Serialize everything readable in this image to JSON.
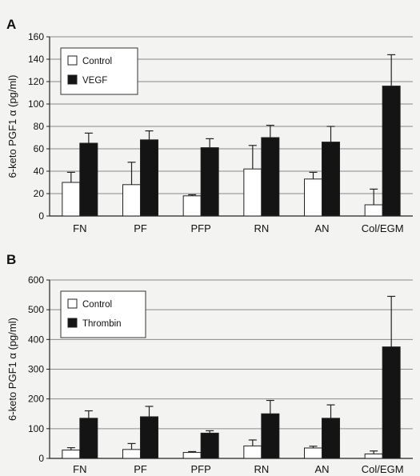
{
  "chart_data": [
    {
      "type": "bar",
      "panel_label": "A",
      "ylabel": "6-keto PGF1 α (pg/ml)",
      "xlabel": "",
      "ylim": [
        0,
        160
      ],
      "yticks": [
        0,
        20,
        40,
        60,
        80,
        100,
        120,
        140,
        160
      ],
      "grid": true,
      "legend_position": "top-left",
      "categories": [
        "FN",
        "PF",
        "PFP",
        "RN",
        "AN",
        "Col/EGM"
      ],
      "series": [
        {
          "name": "Control",
          "color": "#ffffff",
          "values": [
            30,
            28,
            18,
            42,
            33,
            10
          ],
          "errors": [
            9,
            20,
            1,
            21,
            6,
            14
          ]
        },
        {
          "name": "VEGF",
          "color": "#141414",
          "values": [
            65,
            68,
            61,
            70,
            66,
            116
          ],
          "errors": [
            9,
            8,
            8,
            11,
            14,
            28
          ]
        }
      ]
    },
    {
      "type": "bar",
      "panel_label": "B",
      "ylabel": "6-keto PGF1 α (pg/ml)",
      "xlabel": "",
      "ylim": [
        0,
        600
      ],
      "yticks": [
        0,
        100,
        200,
        300,
        400,
        500,
        600
      ],
      "grid": true,
      "legend_position": "top-left",
      "categories": [
        "FN",
        "PF",
        "PFP",
        "RN",
        "AN",
        "Col/EGM"
      ],
      "series": [
        {
          "name": "Control",
          "color": "#ffffff",
          "values": [
            28,
            30,
            20,
            42,
            35,
            15
          ],
          "errors": [
            8,
            20,
            3,
            20,
            6,
            10
          ]
        },
        {
          "name": "Thrombin",
          "color": "#141414",
          "values": [
            135,
            140,
            85,
            150,
            135,
            375
          ],
          "errors": [
            25,
            35,
            8,
            45,
            45,
            170
          ]
        }
      ]
    }
  ]
}
